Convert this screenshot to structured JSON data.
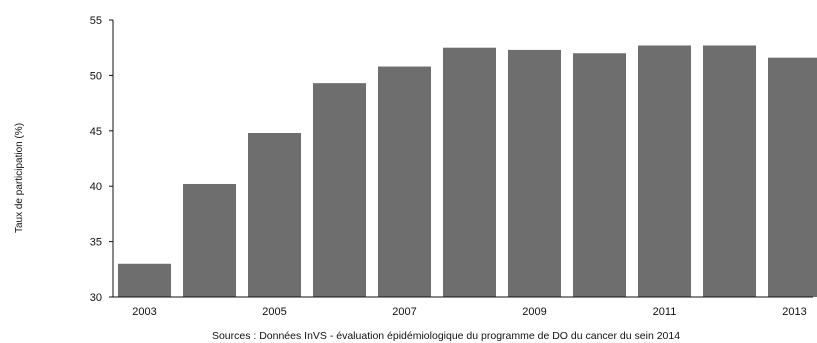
{
  "chart_data": {
    "type": "bar",
    "ylabel": "Taux de participation (%)",
    "xlabel": "",
    "title": "",
    "source": "Sources : Données InVS - évaluation épidémiologique du programme de DO du cancer du sein 2014",
    "ylim": [
      30,
      55
    ],
    "yticks": [
      30,
      35,
      40,
      45,
      50,
      55
    ],
    "categories": [
      "2003",
      "2004",
      "2005",
      "2006",
      "2007",
      "2008",
      "2009",
      "2010",
      "2011",
      "2012",
      "2013"
    ],
    "xtick_labels": [
      "2003",
      "2005",
      "2007",
      "2009",
      "2011",
      "2013"
    ],
    "values": [
      33.0,
      40.2,
      44.8,
      49.3,
      50.8,
      52.5,
      52.3,
      52.0,
      52.7,
      52.7,
      51.6
    ],
    "bar_color": "#6e6e6e",
    "grid": false,
    "legend": "none"
  }
}
